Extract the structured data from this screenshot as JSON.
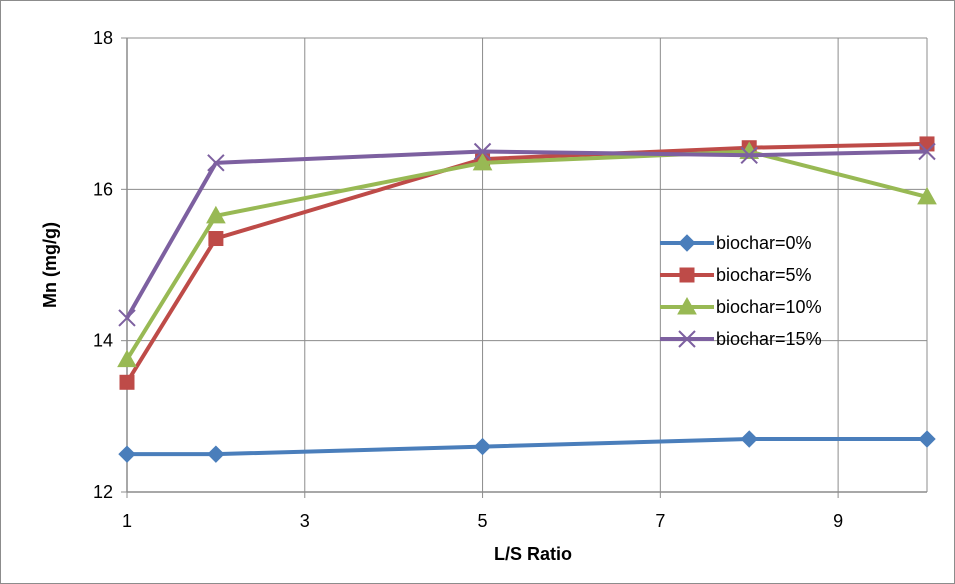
{
  "chart_data": {
    "type": "line",
    "title": "",
    "xlabel": "L/S Ratio",
    "ylabel": "Mn (mg/g)",
    "xlim": [
      1,
      10
    ],
    "ylim": [
      12,
      18
    ],
    "x_ticks": [
      1,
      3,
      5,
      7,
      9
    ],
    "y_ticks": [
      12,
      14,
      16,
      18
    ],
    "grid": true,
    "legend_position": "right",
    "x": [
      1,
      2,
      5,
      8,
      10
    ],
    "series": [
      {
        "name": "biochar=0%",
        "values": [
          12.5,
          12.5,
          12.6,
          12.7,
          12.7
        ],
        "color": "#4a7ebb",
        "marker": "diamond"
      },
      {
        "name": "biochar=5%",
        "values": [
          13.45,
          15.35,
          16.4,
          16.55,
          16.6
        ],
        "color": "#be4b48",
        "marker": "square"
      },
      {
        "name": "biochar=10%",
        "values": [
          13.75,
          15.65,
          16.35,
          16.5,
          15.9
        ],
        "color": "#98b954",
        "marker": "triangle"
      },
      {
        "name": "biochar=15%",
        "values": [
          14.3,
          16.35,
          16.5,
          16.45,
          16.5
        ],
        "color": "#7d60a0",
        "marker": "x"
      }
    ]
  }
}
